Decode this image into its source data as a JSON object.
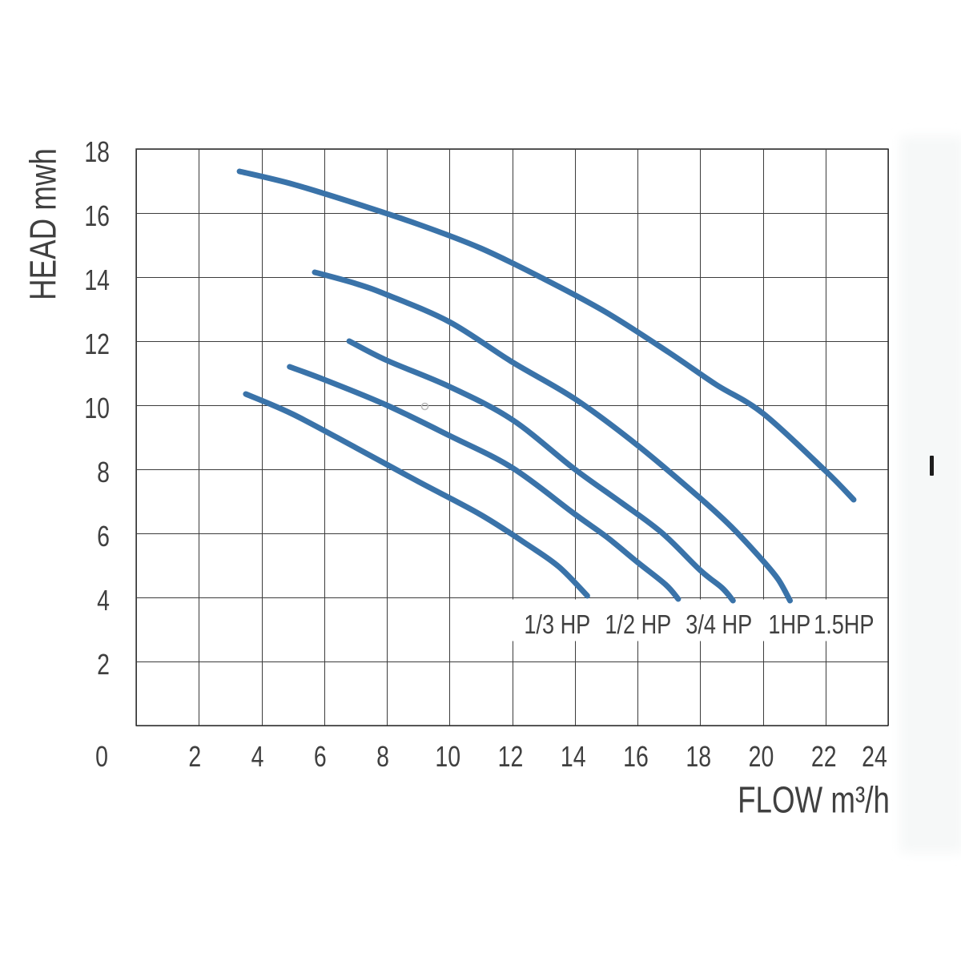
{
  "figure": {
    "type": "pump-performance-curve-chart",
    "background_color": "#ffffff",
    "right_margin_tint": "#f6f8f8"
  },
  "chart_data": {
    "type": "line",
    "title": "",
    "xlabel": "FLOW  m³/h",
    "ylabel": "HEAD mwh",
    "xlim": [
      0,
      24
    ],
    "ylim": [
      0,
      18
    ],
    "grid": true,
    "grid_step": 2,
    "legend_position": "curve-end-labels",
    "x_ticks": [
      0,
      2,
      4,
      6,
      8,
      10,
      12,
      14,
      16,
      18,
      20,
      22,
      24
    ],
    "y_ticks": [
      0,
      2,
      4,
      6,
      8,
      10,
      12,
      14,
      16,
      18
    ],
    "origin_label": "0",
    "colors": {
      "curve": "#3a73a9",
      "grid": "#3c3c3c",
      "border": "#353535",
      "text": "#404040"
    },
    "series": [
      {
        "name": "1/3 HP",
        "label_at_flow": 13.44,
        "points": [
          [
            3.5,
            10.35
          ],
          [
            5,
            9.72
          ],
          [
            7,
            8.68
          ],
          [
            9,
            7.62
          ],
          [
            11,
            6.58
          ],
          [
            12.5,
            5.64
          ],
          [
            13.5,
            4.95
          ],
          [
            14.4,
            4.05
          ]
        ]
      },
      {
        "name": "1/2 HP",
        "label_at_flow": 16.02,
        "points": [
          [
            4.9,
            11.2
          ],
          [
            6,
            10.8
          ],
          [
            8,
            10.0
          ],
          [
            10,
            9.05
          ],
          [
            12,
            8.05
          ],
          [
            14,
            6.6
          ],
          [
            15,
            5.9
          ],
          [
            16,
            5.1
          ],
          [
            16.9,
            4.4
          ],
          [
            17.3,
            3.95
          ]
        ]
      },
      {
        "name": "3/4 HP",
        "label_at_flow": 18.6,
        "points": [
          [
            6.8,
            12.0
          ],
          [
            8,
            11.4
          ],
          [
            10,
            10.58
          ],
          [
            12,
            9.55
          ],
          [
            14,
            8.0
          ],
          [
            15.5,
            6.95
          ],
          [
            16.8,
            6.0
          ],
          [
            18,
            4.85
          ],
          [
            18.7,
            4.3
          ],
          [
            19.05,
            3.9
          ]
        ]
      },
      {
        "name": "1HP",
        "label_at_flow": 20.85,
        "points": [
          [
            5.7,
            14.15
          ],
          [
            7,
            13.8
          ],
          [
            8,
            13.45
          ],
          [
            10,
            12.6
          ],
          [
            12,
            11.35
          ],
          [
            14,
            10.2
          ],
          [
            16,
            8.75
          ],
          [
            18,
            7.1
          ],
          [
            19,
            6.2
          ],
          [
            20,
            5.15
          ],
          [
            20.5,
            4.55
          ],
          [
            20.87,
            3.9
          ]
        ]
      },
      {
        "name": "1.5HP",
        "label_at_flow": 22.59,
        "points": [
          [
            3.3,
            17.3
          ],
          [
            5,
            16.9
          ],
          [
            7,
            16.3
          ],
          [
            9,
            15.65
          ],
          [
            11,
            14.9
          ],
          [
            13,
            13.95
          ],
          [
            15,
            12.9
          ],
          [
            17,
            11.65
          ],
          [
            18.5,
            10.65
          ],
          [
            20,
            9.75
          ],
          [
            22,
            7.95
          ],
          [
            22.9,
            7.05
          ]
        ]
      }
    ]
  }
}
